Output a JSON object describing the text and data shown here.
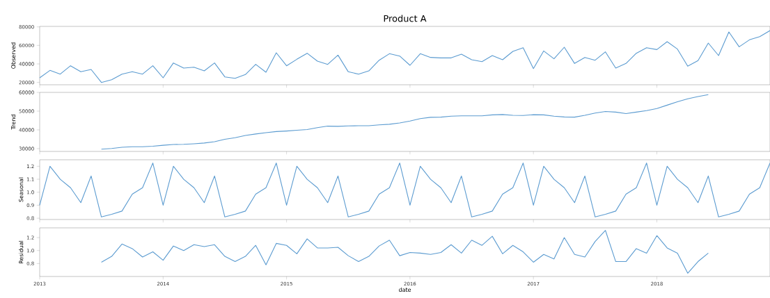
{
  "chart_data": [
    {
      "type": "line",
      "title": "Product A",
      "ylabel": "Observed",
      "color": "#5b9bd0",
      "tick_labels": "y",
      "x": [
        "2013-01",
        "2013-02",
        "2013-03",
        "2013-04",
        "2013-05",
        "2013-06",
        "2013-07",
        "2013-08",
        "2013-09",
        "2013-10",
        "2013-11",
        "2013-12",
        "2014-01",
        "2014-02",
        "2014-03",
        "2014-04",
        "2014-05",
        "2014-06",
        "2014-07",
        "2014-08",
        "2014-09",
        "2014-10",
        "2014-11",
        "2014-12",
        "2015-01",
        "2015-02",
        "2015-03",
        "2015-04",
        "2015-05",
        "2015-06",
        "2015-07",
        "2015-08",
        "2015-09",
        "2015-10",
        "2015-11",
        "2015-12",
        "2016-01",
        "2016-02",
        "2016-03",
        "2016-04",
        "2016-05",
        "2016-06",
        "2016-07",
        "2016-08",
        "2016-09",
        "2016-10",
        "2016-11",
        "2016-12",
        "2017-01",
        "2017-02",
        "2017-03",
        "2017-04",
        "2017-05",
        "2017-06",
        "2017-07",
        "2017-08",
        "2017-09",
        "2017-10",
        "2017-11",
        "2017-12",
        "2018-01",
        "2018-02",
        "2018-03",
        "2018-04",
        "2018-05",
        "2018-06",
        "2018-07",
        "2018-08",
        "2018-09",
        "2018-10",
        "2018-11",
        "2018-12"
      ],
      "values": [
        25000,
        33000,
        29000,
        38000,
        31500,
        34000,
        20000,
        23000,
        29000,
        31500,
        29000,
        38000,
        25000,
        41000,
        35500,
        36500,
        32500,
        41000,
        26000,
        24500,
        28500,
        39500,
        31000,
        52000,
        38000,
        45000,
        51500,
        43000,
        39500,
        49500,
        31500,
        29000,
        32500,
        44000,
        51000,
        48500,
        38500,
        51000,
        47000,
        46500,
        46500,
        50500,
        44500,
        42500,
        49000,
        44500,
        53500,
        57500,
        35000,
        54000,
        45500,
        58000,
        40500,
        47000,
        44000,
        53000,
        35500,
        40500,
        51500,
        57500,
        55500,
        64000,
        56000,
        37500,
        43500,
        62500,
        49000,
        74500,
        58500,
        66000,
        69500,
        76000
      ],
      "xlim": [
        "2013-01",
        "2018-12"
      ],
      "xticks": [
        "2013",
        "2014",
        "2015",
        "2016",
        "2017",
        "2018"
      ],
      "ylim": [
        17500,
        80500
      ],
      "yticks": [
        20000,
        40000,
        60000,
        80000
      ]
    },
    {
      "type": "line",
      "ylabel": "Trend",
      "color": "#5b9bd0",
      "tick_labels": "y",
      "x": [
        "2013-07",
        "2013-08",
        "2013-09",
        "2013-10",
        "2013-11",
        "2013-12",
        "2014-01",
        "2014-02",
        "2014-03",
        "2014-04",
        "2014-05",
        "2014-06",
        "2014-07",
        "2014-08",
        "2014-09",
        "2014-10",
        "2014-11",
        "2014-12",
        "2015-01",
        "2015-02",
        "2015-03",
        "2015-04",
        "2015-05",
        "2015-06",
        "2015-07",
        "2015-08",
        "2015-09",
        "2015-10",
        "2015-11",
        "2015-12",
        "2016-01",
        "2016-02",
        "2016-03",
        "2016-04",
        "2016-05",
        "2016-06",
        "2016-07",
        "2016-08",
        "2016-09",
        "2016-10",
        "2016-11",
        "2016-12",
        "2017-01",
        "2017-02",
        "2017-03",
        "2017-04",
        "2017-05",
        "2017-06",
        "2017-07",
        "2017-08",
        "2017-09",
        "2017-10",
        "2017-11",
        "2017-12",
        "2018-01",
        "2018-02",
        "2018-03",
        "2018-04",
        "2018-05",
        "2018-06"
      ],
      "values": [
        29700,
        30100,
        30700,
        31000,
        31000,
        31300,
        31800,
        32200,
        32300,
        32600,
        33000,
        33700,
        35000,
        35800,
        37000,
        37800,
        38500,
        39100,
        39400,
        39800,
        40200,
        41200,
        42000,
        41900,
        42100,
        42200,
        42200,
        42700,
        43000,
        43700,
        44700,
        46000,
        46700,
        46800,
        47300,
        47500,
        47500,
        47500,
        48000,
        48200,
        47800,
        47700,
        48100,
        48000,
        47300,
        46900,
        46800,
        47800,
        49000,
        49800,
        49500,
        48700,
        49500,
        50300,
        51400,
        53200,
        55000,
        56600,
        57800,
        58800
      ],
      "xlim": [
        "2013-01",
        "2018-12"
      ],
      "xticks": [
        "2013",
        "2014",
        "2015",
        "2016",
        "2017",
        "2018"
      ],
      "ylim": [
        28500,
        60000
      ],
      "yticks": [
        30000,
        40000,
        50000,
        60000
      ]
    },
    {
      "type": "line",
      "ylabel": "Seasonal",
      "color": "#5b9bd0",
      "tick_labels": "y",
      "x": [
        "2013-01",
        "2013-02",
        "2013-03",
        "2013-04",
        "2013-05",
        "2013-06",
        "2013-07",
        "2013-08",
        "2013-09",
        "2013-10",
        "2013-11",
        "2013-12",
        "2014-01",
        "2014-02",
        "2014-03",
        "2014-04",
        "2014-05",
        "2014-06",
        "2014-07",
        "2014-08",
        "2014-09",
        "2014-10",
        "2014-11",
        "2014-12",
        "2015-01",
        "2015-02",
        "2015-03",
        "2015-04",
        "2015-05",
        "2015-06",
        "2015-07",
        "2015-08",
        "2015-09",
        "2015-10",
        "2015-11",
        "2015-12",
        "2016-01",
        "2016-02",
        "2016-03",
        "2016-04",
        "2016-05",
        "2016-06",
        "2016-07",
        "2016-08",
        "2016-09",
        "2016-10",
        "2016-11",
        "2016-12",
        "2017-01",
        "2017-02",
        "2017-03",
        "2017-04",
        "2017-05",
        "2017-06",
        "2017-07",
        "2017-08",
        "2017-09",
        "2017-10",
        "2017-11",
        "2017-12",
        "2018-01",
        "2018-02",
        "2018-03",
        "2018-04",
        "2018-05",
        "2018-06",
        "2018-07",
        "2018-08",
        "2018-09",
        "2018-10",
        "2018-11",
        "2018-12"
      ],
      "values": [
        0.9,
        1.2,
        1.1,
        1.035,
        0.92,
        1.125,
        0.81,
        0.83,
        0.855,
        0.985,
        1.035,
        1.225,
        0.9,
        1.2,
        1.1,
        1.035,
        0.92,
        1.125,
        0.81,
        0.83,
        0.855,
        0.985,
        1.035,
        1.225,
        0.9,
        1.2,
        1.1,
        1.035,
        0.92,
        1.125,
        0.81,
        0.83,
        0.855,
        0.985,
        1.035,
        1.225,
        0.9,
        1.2,
        1.1,
        1.035,
        0.92,
        1.125,
        0.81,
        0.83,
        0.855,
        0.985,
        1.035,
        1.225,
        0.9,
        1.2,
        1.1,
        1.035,
        0.92,
        1.125,
        0.81,
        0.83,
        0.855,
        0.985,
        1.035,
        1.225,
        0.9,
        1.2,
        1.1,
        1.035,
        0.92,
        1.125,
        0.81,
        0.83,
        0.855,
        0.985,
        1.035,
        1.225
      ],
      "xlim": [
        "2013-01",
        "2018-12"
      ],
      "xticks": [
        "2013",
        "2014",
        "2015",
        "2016",
        "2017",
        "2018"
      ],
      "ylim": [
        0.79,
        1.25
      ],
      "yticks": [
        0.8,
        0.9,
        {
          "value": 1.0,
          "label": "1.0"
        },
        1.1,
        1.2
      ]
    },
    {
      "type": "line",
      "ylabel": "Residual",
      "xlabel": "date",
      "color": "#5b9bd0",
      "x": [
        "2013-07",
        "2013-08",
        "2013-09",
        "2013-10",
        "2013-11",
        "2013-12",
        "2014-01",
        "2014-02",
        "2014-03",
        "2014-04",
        "2014-05",
        "2014-06",
        "2014-07",
        "2014-08",
        "2014-09",
        "2014-10",
        "2014-11",
        "2014-12",
        "2015-01",
        "2015-02",
        "2015-03",
        "2015-04",
        "2015-05",
        "2015-06",
        "2015-07",
        "2015-08",
        "2015-09",
        "2015-10",
        "2015-11",
        "2015-12",
        "2016-01",
        "2016-02",
        "2016-03",
        "2016-04",
        "2016-05",
        "2016-06",
        "2016-07",
        "2016-08",
        "2016-09",
        "2016-10",
        "2016-11",
        "2016-12",
        "2017-01",
        "2017-02",
        "2017-03",
        "2017-04",
        "2017-05",
        "2017-06",
        "2017-07",
        "2017-08",
        "2017-09",
        "2017-10",
        "2017-11",
        "2017-12",
        "2018-01",
        "2018-02",
        "2018-03",
        "2018-04",
        "2018-05",
        "2018-06"
      ],
      "values": [
        0.82,
        0.91,
        1.1,
        1.03,
        0.9,
        0.98,
        0.85,
        1.07,
        1.0,
        1.09,
        1.06,
        1.09,
        0.91,
        0.83,
        0.91,
        1.08,
        0.78,
        1.11,
        1.08,
        0.95,
        1.18,
        1.04,
        1.04,
        1.05,
        0.92,
        0.83,
        0.91,
        1.07,
        1.16,
        0.92,
        0.97,
        0.96,
        0.94,
        0.97,
        1.09,
        0.96,
        1.16,
        1.08,
        1.22,
        0.95,
        1.08,
        0.98,
        0.82,
        0.94,
        0.87,
        1.2,
        0.94,
        0.9,
        1.14,
        1.31,
        0.83,
        0.83,
        1.03,
        0.96,
        1.23,
        1.04,
        0.96,
        0.65,
        0.83,
        0.96
      ],
      "xlim": [
        "2013-01",
        "2018-12"
      ],
      "xticks": [
        "2013",
        "2014",
        "2015",
        "2016",
        "2017",
        "2018"
      ],
      "ylim": [
        0.6,
        1.35
      ],
      "yticks": [
        0.8,
        {
          "value": 1.0,
          "label": "1.0"
        },
        1.2
      ]
    }
  ]
}
